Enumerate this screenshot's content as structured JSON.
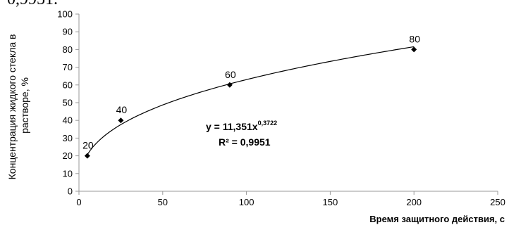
{
  "header_fragment": "0,9951.",
  "chart_data": {
    "type": "scatter",
    "xlabel": "Время защитного действия, с",
    "ylabel_lines": [
      "Концентрация жидкого стекла в",
      "растворе, %"
    ],
    "xlim": [
      0,
      250
    ],
    "ylim": [
      0,
      100
    ],
    "x_ticks": [
      "0",
      "50",
      "100",
      "150",
      "200",
      "250"
    ],
    "y_ticks": [
      "0",
      "10",
      "20",
      "30",
      "40",
      "50",
      "60",
      "70",
      "80",
      "90",
      "100"
    ],
    "x_tick_values": [
      0,
      50,
      100,
      150,
      200,
      250
    ],
    "y_tick_values": [
      0,
      10,
      20,
      30,
      40,
      50,
      60,
      70,
      80,
      90,
      100
    ],
    "points": [
      {
        "x": 5,
        "y": 20,
        "label": "20"
      },
      {
        "x": 25,
        "y": 40,
        "label": "40"
      },
      {
        "x": 90,
        "y": 60,
        "label": "60"
      },
      {
        "x": 200,
        "y": 80,
        "label": "80"
      }
    ],
    "trendline": {
      "type": "power",
      "a": 11.351,
      "b": 0.3722,
      "x_range": [
        5,
        200
      ]
    },
    "equation": {
      "base": "y = 11,351x",
      "exponent": "0,3722",
      "r2": "R² = 0,9951"
    },
    "grid": false,
    "legend": "none",
    "colors": {
      "axis": "#999999",
      "marker": "#000000",
      "trend": "#000000"
    }
  }
}
